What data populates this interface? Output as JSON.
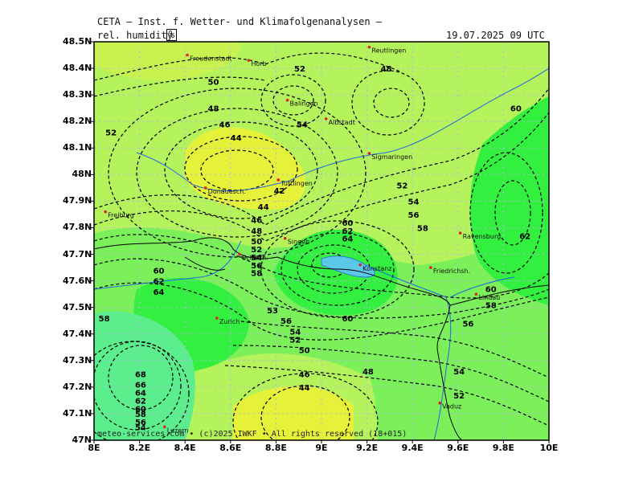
{
  "header": {
    "title": "CETA — Inst. f. Wetter- und Klimafolgenanalysen —",
    "parameter": "rel. humidity",
    "unit": "%",
    "datetime": "19.07.2025 09 UTC"
  },
  "axes": {
    "y_labels": [
      "48.5N",
      "48.4N",
      "48.3N",
      "48.2N",
      "48.1N",
      "48N",
      "47.9N",
      "47.8N",
      "47.7N",
      "47.6N",
      "47.5N",
      "47.4N",
      "47.3N",
      "47.2N",
      "47.1N",
      "47N"
    ],
    "x_labels": [
      "8E",
      "8.2E",
      "8.4E",
      "8.6E",
      "8.8E",
      "9E",
      "9.2E",
      "9.4E",
      "9.6E",
      "9.8E",
      "10E"
    ],
    "lon_range": [
      8.0,
      10.0
    ],
    "lat_range": [
      47.0,
      48.5
    ]
  },
  "cities": [
    {
      "name": "Freudenstadt",
      "lon": 8.41,
      "lat": 48.45
    },
    {
      "name": "Horb",
      "lon": 8.68,
      "lat": 48.43
    },
    {
      "name": "Reutlingen",
      "lon": 9.21,
      "lat": 48.48
    },
    {
      "name": "Balingen",
      "lon": 8.85,
      "lat": 48.28
    },
    {
      "name": "Albstadt",
      "lon": 9.02,
      "lat": 48.21
    },
    {
      "name": "Sigmaringen",
      "lon": 9.21,
      "lat": 48.08
    },
    {
      "name": "Tuttlingen",
      "lon": 8.81,
      "lat": 47.98
    },
    {
      "name": "Donauesch.",
      "lon": 8.49,
      "lat": 47.95
    },
    {
      "name": "Singen",
      "lon": 8.84,
      "lat": 47.76
    },
    {
      "name": "Konstanz",
      "lon": 9.17,
      "lat": 47.66
    },
    {
      "name": "Friedrichsh.",
      "lon": 9.48,
      "lat": 47.65
    },
    {
      "name": "Ravensburg",
      "lon": 9.61,
      "lat": 47.78
    },
    {
      "name": "Lindau",
      "lon": 9.68,
      "lat": 47.55
    },
    {
      "name": "Zurich",
      "lon": 8.54,
      "lat": 47.46
    },
    {
      "name": "Luzern",
      "lon": 8.31,
      "lat": 47.05
    },
    {
      "name": "Vaduz",
      "lon": 9.52,
      "lat": 47.14
    },
    {
      "name": "Schaffh.",
      "lon": 8.64,
      "lat": 47.7
    },
    {
      "name": "Freiburg",
      "lon": 8.05,
      "lat": 47.86
    }
  ],
  "contour_labels": [
    {
      "text": "52",
      "lon": 8.05,
      "lat": 48.16
    },
    {
      "text": "50",
      "lon": 8.5,
      "lat": 48.35
    },
    {
      "text": "48",
      "lon": 8.5,
      "lat": 48.25
    },
    {
      "text": "46",
      "lon": 8.55,
      "lat": 48.19
    },
    {
      "text": "44",
      "lon": 8.6,
      "lat": 48.14
    },
    {
      "text": "52",
      "lon": 8.88,
      "lat": 48.4
    },
    {
      "text": "54",
      "lon": 8.89,
      "lat": 48.19
    },
    {
      "text": "48",
      "lon": 9.26,
      "lat": 48.4
    },
    {
      "text": "60",
      "lon": 9.83,
      "lat": 48.25
    },
    {
      "text": "52",
      "lon": 9.33,
      "lat": 47.96
    },
    {
      "text": "54",
      "lon": 9.38,
      "lat": 47.9
    },
    {
      "text": "56",
      "lon": 9.38,
      "lat": 47.85
    },
    {
      "text": "58",
      "lon": 9.42,
      "lat": 47.8
    },
    {
      "text": "62",
      "lon": 9.87,
      "lat": 47.77
    },
    {
      "text": "42",
      "lon": 8.79,
      "lat": 47.94
    },
    {
      "text": "44",
      "lon": 8.72,
      "lat": 47.88
    },
    {
      "text": "46",
      "lon": 8.69,
      "lat": 47.83
    },
    {
      "text": "48",
      "lon": 8.69,
      "lat": 47.79
    },
    {
      "text": "50",
      "lon": 8.69,
      "lat": 47.75
    },
    {
      "text": "52",
      "lon": 8.69,
      "lat": 47.72
    },
    {
      "text": "54",
      "lon": 8.69,
      "lat": 47.69
    },
    {
      "text": "56",
      "lon": 8.69,
      "lat": 47.66
    },
    {
      "text": "58",
      "lon": 8.69,
      "lat": 47.63
    },
    {
      "text": "60",
      "lon": 9.09,
      "lat": 47.82
    },
    {
      "text": "62",
      "lon": 9.09,
      "lat": 47.79
    },
    {
      "text": "64",
      "lon": 9.09,
      "lat": 47.76
    },
    {
      "text": "60",
      "lon": 8.26,
      "lat": 47.64
    },
    {
      "text": "62",
      "lon": 8.26,
      "lat": 47.6
    },
    {
      "text": "64",
      "lon": 8.26,
      "lat": 47.56
    },
    {
      "text": "58",
      "lon": 8.02,
      "lat": 47.46
    },
    {
      "text": "53",
      "lon": 8.76,
      "lat": 47.49
    },
    {
      "text": "56",
      "lon": 8.82,
      "lat": 47.45
    },
    {
      "text": "54",
      "lon": 8.86,
      "lat": 47.41
    },
    {
      "text": "52",
      "lon": 8.86,
      "lat": 47.38
    },
    {
      "text": "50",
      "lon": 8.9,
      "lat": 47.34
    },
    {
      "text": "46",
      "lon": 8.9,
      "lat": 47.25
    },
    {
      "text": "44",
      "lon": 8.9,
      "lat": 47.2
    },
    {
      "text": "60",
      "lon": 9.09,
      "lat": 47.46
    },
    {
      "text": "48",
      "lon": 9.18,
      "lat": 47.26
    },
    {
      "text": "60",
      "lon": 9.72,
      "lat": 47.57
    },
    {
      "text": "58",
      "lon": 9.72,
      "lat": 47.51
    },
    {
      "text": "56",
      "lon": 9.62,
      "lat": 47.44
    },
    {
      "text": "54",
      "lon": 9.58,
      "lat": 47.26
    },
    {
      "text": "52",
      "lon": 9.58,
      "lat": 47.17
    },
    {
      "text": "68",
      "lon": 8.18,
      "lat": 47.25
    },
    {
      "text": "66",
      "lon": 8.18,
      "lat": 47.21
    },
    {
      "text": "64",
      "lon": 8.18,
      "lat": 47.18
    },
    {
      "text": "62",
      "lon": 8.18,
      "lat": 47.15
    },
    {
      "text": "60",
      "lon": 8.18,
      "lat": 47.12
    },
    {
      "text": "58",
      "lon": 8.18,
      "lat": 47.1
    },
    {
      "text": "56",
      "lon": 8.18,
      "lat": 47.07
    },
    {
      "text": "54",
      "lon": 8.18,
      "lat": 47.05
    }
  ],
  "copyright": "meteo-services.com • (c)2025 IWKF • All rights reserved (18+015)",
  "colors": {
    "dry_yellow": "#e6f23a",
    "light_yellowgreen": "#b4f35c",
    "green": "#7cf05a",
    "bright_green": "#33f040",
    "teal": "#5cee8c",
    "contour": "#000000",
    "river": "#2266dd",
    "border": "#000000"
  }
}
